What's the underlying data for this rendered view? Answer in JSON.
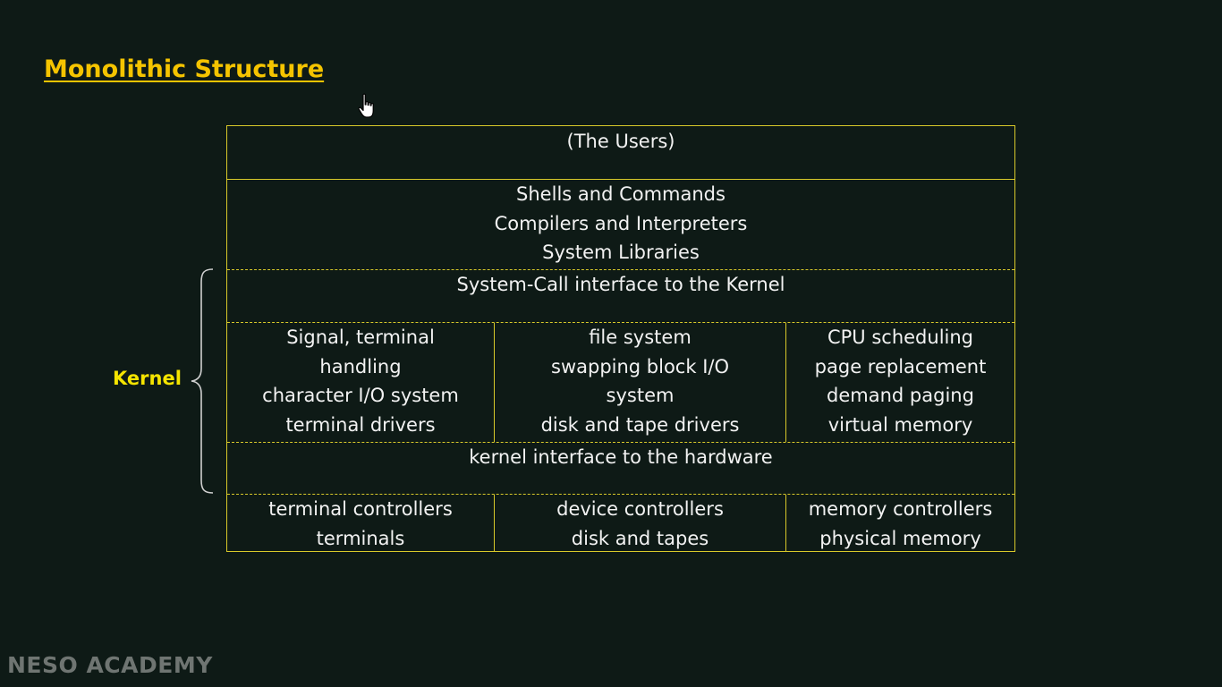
{
  "slide": {
    "title": "Monolithic Structure",
    "watermark": "NESO ACADEMY",
    "kernel_label": "Kernel"
  },
  "diagram": {
    "users": "(The Users)",
    "system_programs": [
      "Shells and Commands",
      "Compilers and Interpreters",
      "System Libraries"
    ],
    "syscall_interface": "System-Call interface to the Kernel",
    "kernel_columns": [
      [
        "Signal, terminal",
        "handling",
        "character I/O system",
        "terminal drivers"
      ],
      [
        "file system",
        "swapping block I/O",
        "system",
        "disk and tape drivers"
      ],
      [
        "CPU scheduling",
        "page replacement",
        "demand paging",
        "virtual memory"
      ]
    ],
    "hardware_interface": "kernel interface to the hardware",
    "hardware_columns": [
      [
        "terminal controllers",
        "terminals"
      ],
      [
        "device controllers",
        "disk and tapes"
      ],
      [
        "memory controllers",
        "physical memory"
      ]
    ]
  },
  "colors": {
    "background": "#0e1a16",
    "title": "#f5c400",
    "border": "#d8c92a",
    "kernel_label": "#f5e400",
    "watermark": "#6f7572"
  },
  "icons": {
    "cursor": "hand-pointer-icon",
    "brace": "curly-brace-icon"
  }
}
